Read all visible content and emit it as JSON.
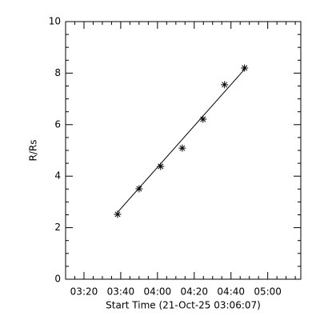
{
  "chart_data": {
    "type": "scatter",
    "xlabel": "Start Time (21-Oct-25 03:06:07)",
    "ylabel": "R/Rs",
    "x": [
      218.3,
      230,
      241.7,
      253.5,
      264.8,
      276.5,
      287.4
    ],
    "values": [
      2.52,
      3.51,
      4.38,
      5.09,
      6.21,
      7.55,
      8.2
    ],
    "marker": "asterisk",
    "color": "#000000",
    "fit": {
      "x": [
        218.3,
        287.4
      ],
      "values": [
        2.6,
        8.15
      ]
    },
    "xlim": [
      190,
      318
    ],
    "xticks": [
      {
        "value": 200,
        "label": "03:20"
      },
      {
        "value": 220,
        "label": "03:40"
      },
      {
        "value": 240,
        "label": "04:00"
      },
      {
        "value": 260,
        "label": "04:20"
      },
      {
        "value": 280,
        "label": "04:40"
      },
      {
        "value": 300,
        "label": "05:00"
      }
    ],
    "xminorticks": [
      195,
      205,
      210,
      215,
      225,
      230,
      235,
      245,
      250,
      255,
      265,
      270,
      275,
      285,
      290,
      295,
      305,
      310,
      315
    ],
    "ylim": [
      0,
      10
    ],
    "yticks": [
      0,
      2,
      4,
      6,
      8,
      10
    ],
    "yminorticks": [
      0.5,
      1,
      1.5,
      2.5,
      3,
      3.5,
      4.5,
      5,
      5.5,
      6.5,
      7,
      7.5,
      8.5,
      9,
      9.5
    ]
  }
}
